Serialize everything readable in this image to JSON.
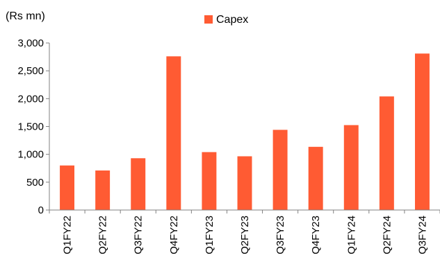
{
  "chart_data": {
    "type": "bar",
    "title": "",
    "unit_label": "(Rs mn)",
    "xlabel": "",
    "ylabel": "",
    "categories": [
      "Q1FY22",
      "Q2FY22",
      "Q3FY22",
      "Q4FY22",
      "Q1FY23",
      "Q2FY23",
      "Q3FY23",
      "Q4FY23",
      "Q1FY24",
      "Q2FY24",
      "Q3FY24"
    ],
    "series": [
      {
        "name": "Capex",
        "color": "#FF5B33",
        "values": [
          800,
          710,
          930,
          2760,
          1040,
          965,
          1440,
          1135,
          1525,
          2040,
          2810
        ]
      }
    ],
    "ylim": [
      0,
      3000
    ],
    "yticks": [
      0,
      500,
      1000,
      1500,
      2000,
      2500,
      3000
    ],
    "ytick_labels": [
      "0",
      "500",
      "1,000",
      "1,500",
      "2,000",
      "2,500",
      "3,000"
    ],
    "grid": false,
    "legend": "top-center"
  }
}
